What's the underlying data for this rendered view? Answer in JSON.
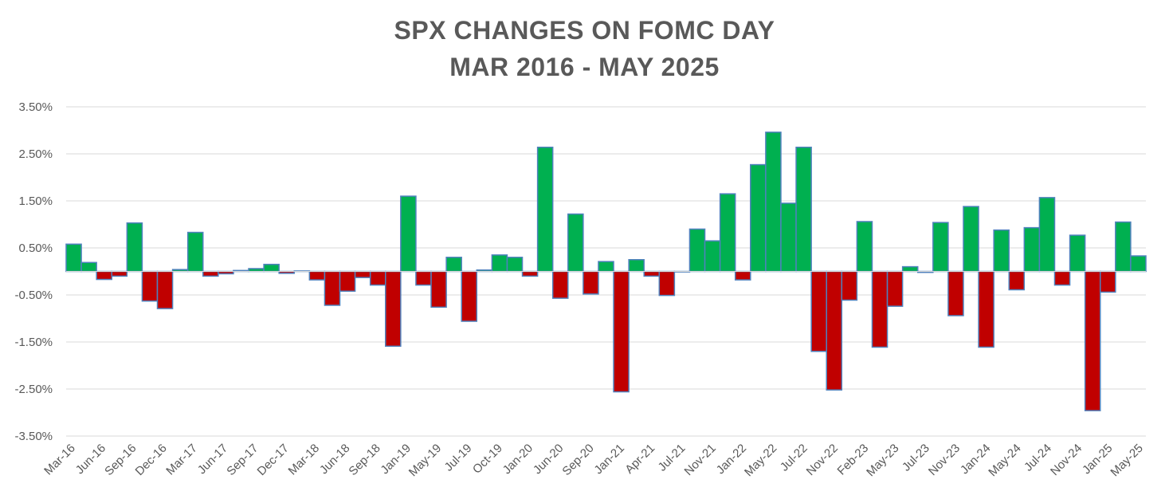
{
  "chart_data": {
    "type": "bar",
    "title": "SPX CHANGES ON FOMC DAY",
    "subtitle": "MAR 2016 - MAY 2025",
    "xlabel": "",
    "ylabel": "",
    "ylim": [
      -3.5,
      3.5
    ],
    "y_ticks": [
      "3.50%",
      "2.50%",
      "1.50%",
      "0.50%",
      "-0.50%",
      "-1.50%",
      "-2.50%",
      "-3.50%"
    ],
    "y_tick_values": [
      3.5,
      2.5,
      1.5,
      0.5,
      -0.5,
      -1.5,
      -2.5,
      -3.5
    ],
    "grid": true,
    "legend": "none",
    "colors": {
      "positive": "#00b050",
      "negative": "#c00000",
      "edge": "#4f81bd",
      "grid": "#d9d9d9",
      "text": "#595959"
    },
    "x_tick_labels": [
      "Mar-16",
      "Jun-16",
      "Sep-16",
      "Dec-16",
      "Mar-17",
      "Jun-17",
      "Sep-17",
      "Dec-17",
      "Mar-18",
      "Jun-18",
      "Sep-18",
      "Jan-19",
      "May-19",
      "Jul-19",
      "Oct-19",
      "Jan-20",
      "Jun-20",
      "Sep-20",
      "Jan-21",
      "Apr-21",
      "Jul-21",
      "Nov-21",
      "Jan-22",
      "May-22",
      "Jul-22",
      "Nov-22",
      "Feb-23",
      "May-23",
      "Jul-23",
      "Nov-23",
      "Jan-24",
      "May-24",
      "Jul-24",
      "Nov-24",
      "Jan-25",
      "May-25"
    ],
    "values": [
      0.58,
      0.19,
      -0.17,
      -0.1,
      1.03,
      -0.63,
      -0.79,
      0.04,
      0.83,
      -0.1,
      -0.05,
      0.02,
      0.06,
      0.15,
      -0.04,
      0.01,
      -0.18,
      -0.72,
      -0.42,
      -0.13,
      -0.29,
      -1.59,
      1.6,
      -0.29,
      -0.76,
      0.3,
      -1.06,
      0.03,
      0.35,
      0.3,
      -0.1,
      2.64,
      -0.57,
      1.22,
      -0.48,
      0.21,
      -2.56,
      0.25,
      -0.1,
      -0.51,
      -0.01,
      0.9,
      0.65,
      1.65,
      -0.18,
      2.27,
      2.96,
      1.45,
      2.64,
      -1.7,
      -2.52,
      -0.61,
      1.06,
      -1.61,
      -0.74,
      0.1,
      -0.02,
      1.04,
      -0.94,
      1.38,
      -1.61,
      0.88,
      -0.39,
      0.93,
      1.57,
      -0.29,
      0.77,
      -2.96,
      -0.44,
      1.05,
      0.33
    ]
  }
}
